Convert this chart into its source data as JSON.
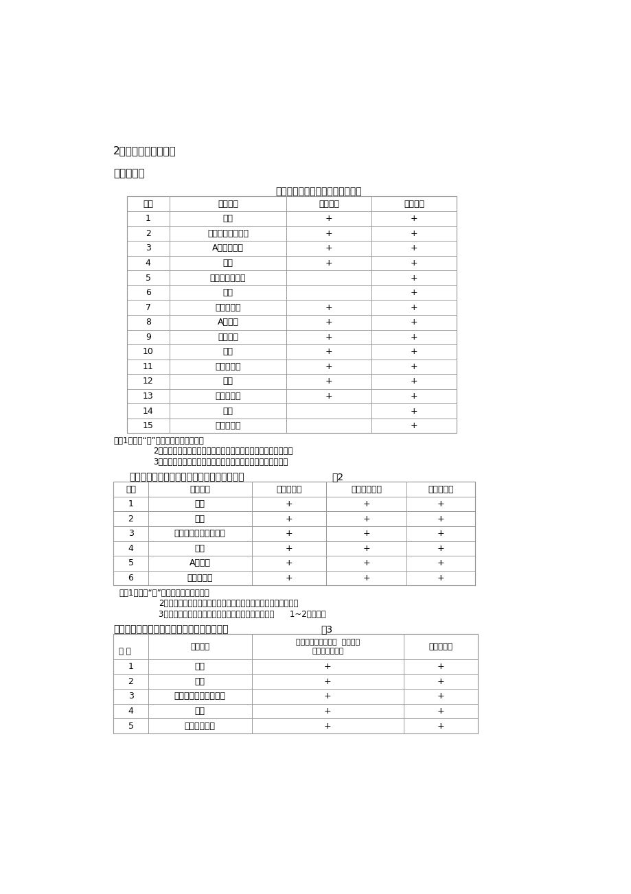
{
  "bg_color": "#ffffff",
  "heading1": "2、涂饰施工主要工序",
  "heading2": "外墙面涂饰",
  "table1_title": "不同等级抖灰表面涂装的主要工序",
  "table1_headers": [
    "工序",
    "工序名称",
    "中级涂装",
    "高级涂装"
  ],
  "table1_rows": [
    [
      "1",
      "清扫",
      "+",
      "+"
    ],
    [
      "2",
      "填补缝隙、磨砂纸",
      "+",
      "+"
    ],
    [
      "3",
      "A遍满划腕子",
      "+",
      "+"
    ],
    [
      "4",
      "磨光",
      "+",
      "+"
    ],
    [
      "5",
      "第二遍满划腕子",
      "",
      "+"
    ],
    [
      "6",
      "磨光",
      "",
      "+"
    ],
    [
      "7",
      "干性油打底",
      "+",
      "+"
    ],
    [
      "8",
      "A遍涂料",
      "+",
      "+"
    ],
    [
      "9",
      "复补腕子",
      "+",
      "+"
    ],
    [
      "10",
      "磨光",
      "+",
      "+"
    ],
    [
      "11",
      "第二遍涂料",
      "+",
      "+"
    ],
    [
      "12",
      "磨光",
      "+",
      "+"
    ],
    [
      "13",
      "第三遍涂料",
      "+",
      "+"
    ],
    [
      "14",
      "磨光",
      "",
      "+"
    ],
    [
      "15",
      "第四遍涂料",
      "",
      "+"
    ]
  ],
  "note1_line1": "注：1、表中“＋”号表示应进行的工序。",
  "note1_line2": "2、如涂刷乳胶漆，在每一遍满划腕子之前应刷一遍乳胶水溶液。",
  "note1_line3": "3、第一遍满划腕子前，如加刷干性油时，应用油性腕子涂抑。",
  "table2_title": "混凝土及抖灰外墙表面薄涂料工程的主要工序",
  "table2_label": "表2",
  "table2_headers": [
    "项次",
    "工序名称",
    "乳液薄涂料",
    "溢剂型薄涂料",
    "无机薄涂料"
  ],
  "table2_rows": [
    [
      "1",
      "修补",
      "+",
      "+",
      "+"
    ],
    [
      "2",
      "清扫",
      "+",
      "+",
      "+"
    ],
    [
      "3",
      "填补缝隙、局部划腕子",
      "+",
      "+",
      "+"
    ],
    [
      "4",
      "磨平",
      "+",
      "+",
      "+"
    ],
    [
      "5",
      "A遍涂料",
      "+",
      "+",
      "+"
    ],
    [
      "6",
      "第二遍涂料",
      "+",
      "+",
      "+"
    ]
  ],
  "note2_line1": "注：1、表中“＋”号表示应进行的工序。",
  "note2_line2": "2、机械喷涂可不受表中涂料遍数的限制，以达到质量要求为准。",
  "note2_line3": "3、如施涂第二遍涂料后，装饰效果不理想时，可增加      1~2遍涂料。",
  "table3_title": "混凝土及抖灰外墙表面厘涂料工程的主要工序",
  "table3_label": "表3",
  "table3_col0_header": "项 次",
  "table3_col1_header": "工序名称",
  "table3_col2_header_line1": "合成树脂乳液厘涂料  合成树脂",
  "table3_col2_header_line2": "乳液砂浆状涂料",
  "table3_col3_header": "无机厘涂料",
  "table3_rows": [
    [
      "1",
      "修补",
      "+",
      "+"
    ],
    [
      "2",
      "清扫",
      "+",
      "+"
    ],
    [
      "3",
      "填补缝隙、局部划腕子",
      "+",
      "+"
    ],
    [
      "4",
      "磨平",
      "+",
      "+"
    ],
    [
      "5",
      "第一遍厘涂料",
      "+",
      "+"
    ]
  ]
}
